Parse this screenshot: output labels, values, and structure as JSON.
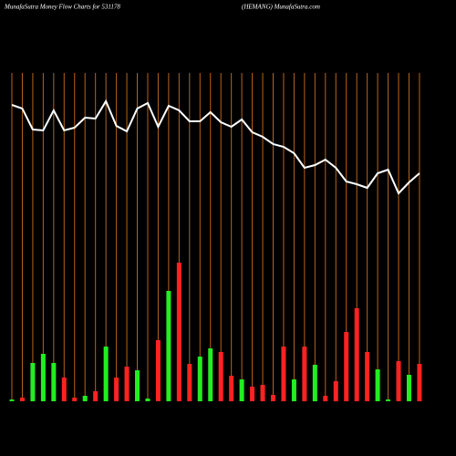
{
  "chart_data": {
    "type": "money-flow",
    "title": "MunafaSutra  Money Flow  Charts for 531178",
    "subtitle": "(HEMANG) MunafaSutra.com",
    "categories": [
      null,
      null,
      null,
      null,
      null,
      null,
      null,
      null,
      null,
      null,
      null,
      null,
      null,
      null,
      null,
      null,
      null,
      null,
      null,
      null,
      null,
      null,
      null,
      null,
      null,
      null,
      null,
      null,
      null,
      null,
      null,
      null,
      null,
      null,
      null,
      null,
      null,
      null,
      null,
      null
    ],
    "price": [
      325,
      321,
      298,
      297,
      319,
      297,
      300,
      311,
      310,
      329,
      302,
      296,
      321,
      327,
      301,
      324,
      319,
      307,
      307,
      317,
      306,
      301,
      309,
      295,
      290,
      282,
      279,
      272,
      256,
      259,
      265,
      256,
      241,
      238,
      234,
      250,
      254,
      228,
      240,
      250
    ],
    "price_color": "#ffffff",
    "volume": [
      2,
      4,
      42,
      52,
      42,
      26,
      4,
      6,
      11,
      60,
      26,
      38,
      34,
      3,
      67,
      121,
      152,
      41,
      49,
      58,
      54,
      28,
      24,
      16,
      18,
      7,
      60,
      24,
      60,
      40,
      6,
      22,
      76,
      102,
      54,
      35,
      2,
      44,
      29,
      41
    ],
    "volume_colors": [
      "#22ee22",
      "#ff2222",
      "#22ee22",
      "#22ee22",
      "#22ee22",
      "#ff2222",
      "#ff2222",
      "#22ee22",
      "#ff2222",
      "#22ee22",
      "#ff2222",
      "#ff2222",
      "#22ee22",
      "#22ee22",
      "#ff2222",
      "#22ee22",
      "#ff2222",
      "#ff2222",
      "#22ee22",
      "#22ee22",
      "#ff2222",
      "#ff2222",
      "#22ee22",
      "#ff2222",
      "#ff2222",
      "#ff2222",
      "#ff2222",
      "#22ee22",
      "#ff2222",
      "#22ee22",
      "#ff2222",
      "#ff2222",
      "#ff2222",
      "#ff2222",
      "#ff2222",
      "#22ee22",
      "#22ee22",
      "#ff2222",
      "#22ee22",
      "#ff2222"
    ],
    "grid_color": "#b8651b"
  }
}
